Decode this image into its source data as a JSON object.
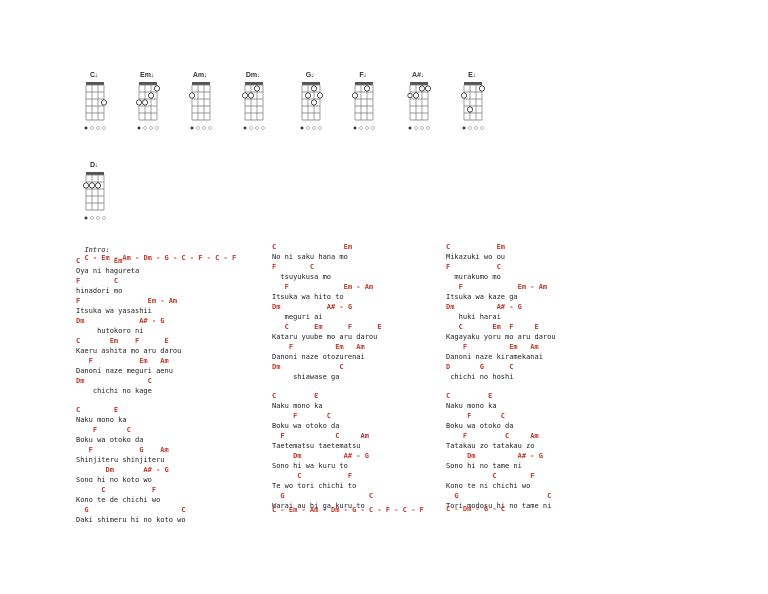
{
  "chords": [
    {
      "name": "C",
      "dots": [
        [
          3,
          3
        ]
      ],
      "open": []
    },
    {
      "name": "Em",
      "dots": [
        [
          3,
          1
        ],
        [
          2,
          2
        ],
        [
          0,
          3
        ],
        [
          1,
          3
        ]
      ],
      "open": []
    },
    {
      "name": "Am",
      "dots": [
        [
          0,
          2
        ]
      ],
      "open": []
    },
    {
      "name": "Dm",
      "dots": [
        [
          2,
          1
        ],
        [
          0,
          2
        ],
        [
          1,
          2
        ]
      ],
      "open": []
    },
    {
      "name": "G",
      "dots": [
        [
          2,
          1
        ],
        [
          1,
          2
        ],
        [
          3,
          2
        ],
        [
          2,
          3
        ]
      ],
      "open": []
    },
    {
      "name": "F",
      "dots": [
        [
          2,
          1
        ],
        [
          0,
          2
        ]
      ],
      "open": []
    },
    {
      "name": "A#",
      "dots": [
        [
          2,
          1
        ],
        [
          3,
          1
        ],
        [
          1,
          2
        ]
      ],
      "open": [
        0
      ]
    },
    {
      "name": "E",
      "dots": [
        [
          3,
          1
        ],
        [
          0,
          2
        ],
        [
          1,
          4
        ]
      ],
      "open": []
    },
    {
      "name": "D",
      "dots": [
        [
          0,
          2
        ],
        [
          1,
          2
        ],
        [
          2,
          2
        ]
      ],
      "open": []
    }
  ],
  "intro": {
    "label": "Intro:",
    "sequence": "C - Em - Am - Dm - G - C - F - C - F"
  },
  "col1": [
    {
      "t": "c",
      "s": "C        Em"
    },
    {
      "t": "l",
      "s": "Oya ni hagureta"
    },
    {
      "t": "c",
      "s": "F        C"
    },
    {
      "t": "l",
      "s": "hinadori mo"
    },
    {
      "t": "c",
      "s": "F                Em - Am"
    },
    {
      "t": "l",
      "s": "Itsuka wa yasashii"
    },
    {
      "t": "c",
      "s": "Dm             A# - G"
    },
    {
      "t": "l",
      "s": "     hutokoro ni"
    },
    {
      "t": "c",
      "s": "C       Em    F      E"
    },
    {
      "t": "l",
      "s": "Kaeru ashita mo aru darou"
    },
    {
      "t": "c",
      "s": "   F           Em   Am"
    },
    {
      "t": "l",
      "s": "Danoni naze meguri aenu"
    },
    {
      "t": "c",
      "s": "Dm               C"
    },
    {
      "t": "l",
      "s": "    chichi no kage"
    },
    {
      "t": "g",
      "s": ""
    },
    {
      "t": "c",
      "s": "C        E"
    },
    {
      "t": "l",
      "s": "Naku mono ka"
    },
    {
      "t": "c",
      "s": "    F       C"
    },
    {
      "t": "l",
      "s": "Boku wa otoko da"
    },
    {
      "t": "c",
      "s": "   F           G    Am"
    },
    {
      "t": "l",
      "s": "Shinjiteru shinjiteru"
    },
    {
      "t": "c",
      "s": "       Dm       A# - G"
    },
    {
      "t": "l",
      "s": "Sono hi no koto wo"
    },
    {
      "t": "c",
      "s": "      C           F"
    },
    {
      "t": "l",
      "s": "Kono te de chichi wo"
    },
    {
      "t": "c",
      "s": "  G                      C"
    },
    {
      "t": "l",
      "s": "Daki shimeru hi no koto wo"
    }
  ],
  "col2": [
    {
      "t": "c",
      "s": "C                Em"
    },
    {
      "t": "l",
      "s": "No ni saku hana mo"
    },
    {
      "t": "c",
      "s": "F        C"
    },
    {
      "t": "l",
      "s": "  tsuyukusa mo"
    },
    {
      "t": "c",
      "s": "   F             Em - Am"
    },
    {
      "t": "l",
      "s": "Itsuka wa hito to"
    },
    {
      "t": "c",
      "s": "Dm           A# - G"
    },
    {
      "t": "l",
      "s": "   meguri ai"
    },
    {
      "t": "c",
      "s": "   C      Em      F      E"
    },
    {
      "t": "l",
      "s": "Kataru yuube mo aru darou"
    },
    {
      "t": "c",
      "s": "    F          Em   Am"
    },
    {
      "t": "l",
      "s": "Danoni naze otozurenai"
    },
    {
      "t": "c",
      "s": "Dm              C"
    },
    {
      "t": "l",
      "s": "     shiawase ga"
    },
    {
      "t": "g",
      "s": ""
    },
    {
      "t": "c",
      "s": "C         E"
    },
    {
      "t": "l",
      "s": "Naku mono ka"
    },
    {
      "t": "c",
      "s": "     F       C"
    },
    {
      "t": "l",
      "s": "Boku wa otoko da"
    },
    {
      "t": "c",
      "s": "  F            C     Am"
    },
    {
      "t": "l",
      "s": "Taetematsu taetematsu"
    },
    {
      "t": "c",
      "s": "     Dm          A# - G"
    },
    {
      "t": "l",
      "s": "Sono hi wa kuru to"
    },
    {
      "t": "c",
      "s": "      C           F"
    },
    {
      "t": "l",
      "s": "Te wo tori chichi to"
    },
    {
      "t": "c",
      "s": "  G                    C"
    },
    {
      "t": "l",
      "s": "Warai au hi ga kuru to"
    }
  ],
  "col3": [
    {
      "t": "c",
      "s": "C           Em"
    },
    {
      "t": "l",
      "s": "Mikazuki wo ou"
    },
    {
      "t": "c",
      "s": "F           C"
    },
    {
      "t": "l",
      "s": "  murakumo mo"
    },
    {
      "t": "c",
      "s": "   F             Em - Am"
    },
    {
      "t": "l",
      "s": "Itsuka wa kaze ga"
    },
    {
      "t": "c",
      "s": "Dm          A# - G"
    },
    {
      "t": "l",
      "s": "   huki harai"
    },
    {
      "t": "c",
      "s": "   C       Em  F     E"
    },
    {
      "t": "l",
      "s": "Kagayaku yoru mo aru darou"
    },
    {
      "t": "c",
      "s": "    F          Em   Am"
    },
    {
      "t": "l",
      "s": "Danoni naze kiramekanai"
    },
    {
      "t": "c",
      "s": "D       G      C"
    },
    {
      "t": "l",
      "s": " chichi no hoshi"
    },
    {
      "t": "g",
      "s": ""
    },
    {
      "t": "c",
      "s": "C         E"
    },
    {
      "t": "l",
      "s": "Naku mono ka"
    },
    {
      "t": "c",
      "s": "     F       C"
    },
    {
      "t": "l",
      "s": "Boku wa otoko da"
    },
    {
      "t": "c",
      "s": "    F         C     Am"
    },
    {
      "t": "l",
      "s": "Tatakau zo tatakau zo"
    },
    {
      "t": "c",
      "s": "     Dm          A# - G"
    },
    {
      "t": "l",
      "s": "Sono hi no tame ni"
    },
    {
      "t": "c",
      "s": "           C        F"
    },
    {
      "t": "l",
      "s": "Kono te ni chichi wo"
    },
    {
      "t": "c",
      "s": "  G                     C"
    },
    {
      "t": "l",
      "s": "Tori modosu hi no tame ni"
    }
  ],
  "col2_outro": "C - Em - Am - Dm - G - C - F - C - F",
  "col3_outro": "C - Dm - G - C"
}
